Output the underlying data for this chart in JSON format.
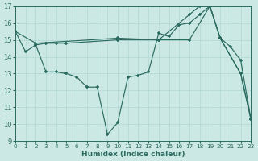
{
  "bg_color": "#cce8e4",
  "grid_color": "#b0d8d4",
  "line_color": "#2a6b60",
  "xlabel": "Humidex (Indice chaleur)",
  "xlim": [
    0,
    23
  ],
  "ylim": [
    9,
    17
  ],
  "yticks": [
    9,
    10,
    11,
    12,
    13,
    14,
    15,
    16,
    17
  ],
  "xticks": [
    0,
    1,
    2,
    3,
    4,
    5,
    6,
    7,
    8,
    9,
    10,
    11,
    12,
    13,
    14,
    15,
    16,
    17,
    18,
    19,
    20,
    21,
    22,
    23
  ],
  "lineA_x": [
    0,
    2,
    10,
    14,
    17,
    18,
    19,
    20,
    22,
    23
  ],
  "lineA_y": [
    15.5,
    14.8,
    15.1,
    15.0,
    16.5,
    17.0,
    17.0,
    15.1,
    13.0,
    10.3
  ],
  "lineB_x": [
    0,
    1,
    2,
    3,
    4,
    5,
    6,
    7,
    8,
    9,
    10,
    11,
    12,
    13,
    14,
    15,
    16,
    17,
    18,
    19,
    20,
    21,
    22,
    23
  ],
  "lineB_y": [
    15.5,
    14.3,
    14.7,
    13.1,
    13.1,
    13.0,
    12.8,
    12.2,
    12.2,
    9.4,
    10.1,
    12.8,
    12.9,
    13.1,
    15.4,
    15.2,
    15.9,
    16.0,
    16.5,
    17.0,
    15.1,
    14.6,
    13.8,
    10.3
  ],
  "lineC_x": [
    2,
    3,
    4,
    5,
    10,
    14,
    17,
    19,
    20,
    22,
    23
  ],
  "lineC_y": [
    14.7,
    14.8,
    14.8,
    14.8,
    15.0,
    15.0,
    15.0,
    17.0,
    15.1,
    13.0,
    10.3
  ]
}
